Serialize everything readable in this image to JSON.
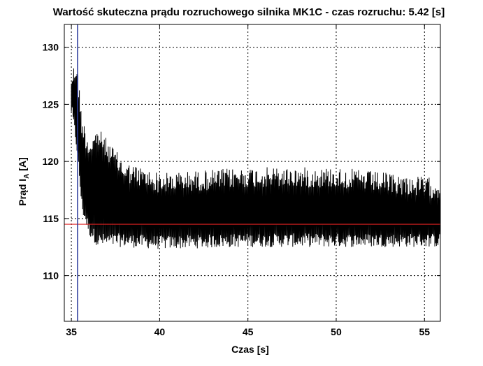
{
  "chart_data": {
    "type": "line",
    "title": "Wartość skuteczna prądu rozruchowego silnika MK1C - czas rozruchu: 5.42 [s]",
    "xlabel": "Czas [s]",
    "ylabel_main": "Prąd I",
    "ylabel_sub": "A",
    "ylabel_unit": " [A]",
    "xlim": [
      34.6,
      55.9
    ],
    "ylim": [
      106,
      132
    ],
    "xticks": [
      35,
      40,
      45,
      50,
      55
    ],
    "yticks": [
      110,
      115,
      120,
      125,
      130
    ],
    "grid": true,
    "grid_style": "dotted",
    "colors": {
      "signal": "#000000",
      "reference": "#e02020",
      "marker": "#2a3a9a"
    },
    "series": [
      {
        "kind": "signal",
        "x_start": 35.0,
        "x_end": 55.9,
        "samples_per_second": 22,
        "envelope": [
          {
            "x": 35.0,
            "high": 128.0,
            "low": 124.0
          },
          {
            "x": 35.3,
            "high": 129.0,
            "low": 121.0
          },
          {
            "x": 35.6,
            "high": 124.0,
            "low": 115.5
          },
          {
            "x": 36.0,
            "high": 122.0,
            "low": 113.5
          },
          {
            "x": 36.5,
            "high": 123.0,
            "low": 112.5
          },
          {
            "x": 37.0,
            "high": 122.0,
            "low": 112.5
          },
          {
            "x": 38.0,
            "high": 120.0,
            "low": 112.5
          },
          {
            "x": 40.0,
            "high": 119.0,
            "low": 112.3
          },
          {
            "x": 45.0,
            "high": 119.5,
            "low": 112.5
          },
          {
            "x": 50.0,
            "high": 119.5,
            "low": 112.5
          },
          {
            "x": 55.9,
            "high": 118.5,
            "low": 112.5
          }
        ]
      },
      {
        "kind": "reference",
        "y": 114.5
      },
      {
        "kind": "marker",
        "x": 35.35
      }
    ]
  }
}
